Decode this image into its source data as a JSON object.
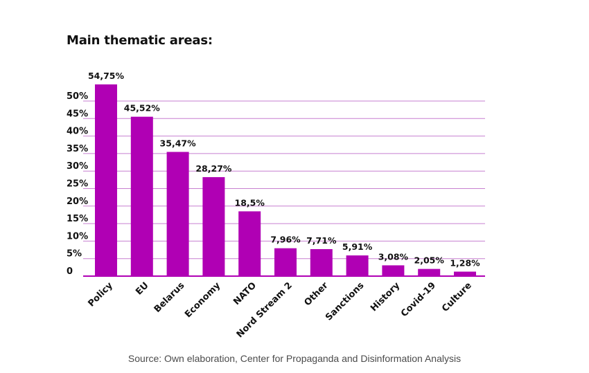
{
  "title": "Main thematic areas:",
  "source": "Source: Own elaboration, Center for Propaganda and Disinformation Analysis",
  "chart_data": {
    "type": "bar",
    "title": "Main thematic areas:",
    "xlabel": "",
    "ylabel": "",
    "categories": [
      "Policy",
      "EU",
      "Belarus",
      "Economy",
      "NATO",
      "Nord Stream 2",
      "Other",
      "Sanctions",
      "History",
      "Covid-19",
      "Culture"
    ],
    "values": [
      54.75,
      45.52,
      35.47,
      28.27,
      18.5,
      7.96,
      7.71,
      5.91,
      3.08,
      2.05,
      1.28
    ],
    "value_labels": [
      "54,75%",
      "45,52%",
      "35,47%",
      "28,27%",
      "18,5%",
      "7,96%",
      "7,71%",
      "5,91%",
      "3,08%",
      "2,05%",
      "1,28%"
    ],
    "y_ticks": [
      0,
      5,
      10,
      15,
      20,
      25,
      30,
      35,
      40,
      45,
      50
    ],
    "y_tick_labels": [
      "0",
      "5%",
      "10%",
      "15%",
      "20%",
      "25%",
      "30%",
      "35%",
      "40%",
      "45%",
      "50%"
    ],
    "ylim": [
      0,
      50
    ],
    "grid": true,
    "legend": "none",
    "bar_color": "#b000b4",
    "grid_color": "#c77fd0"
  }
}
